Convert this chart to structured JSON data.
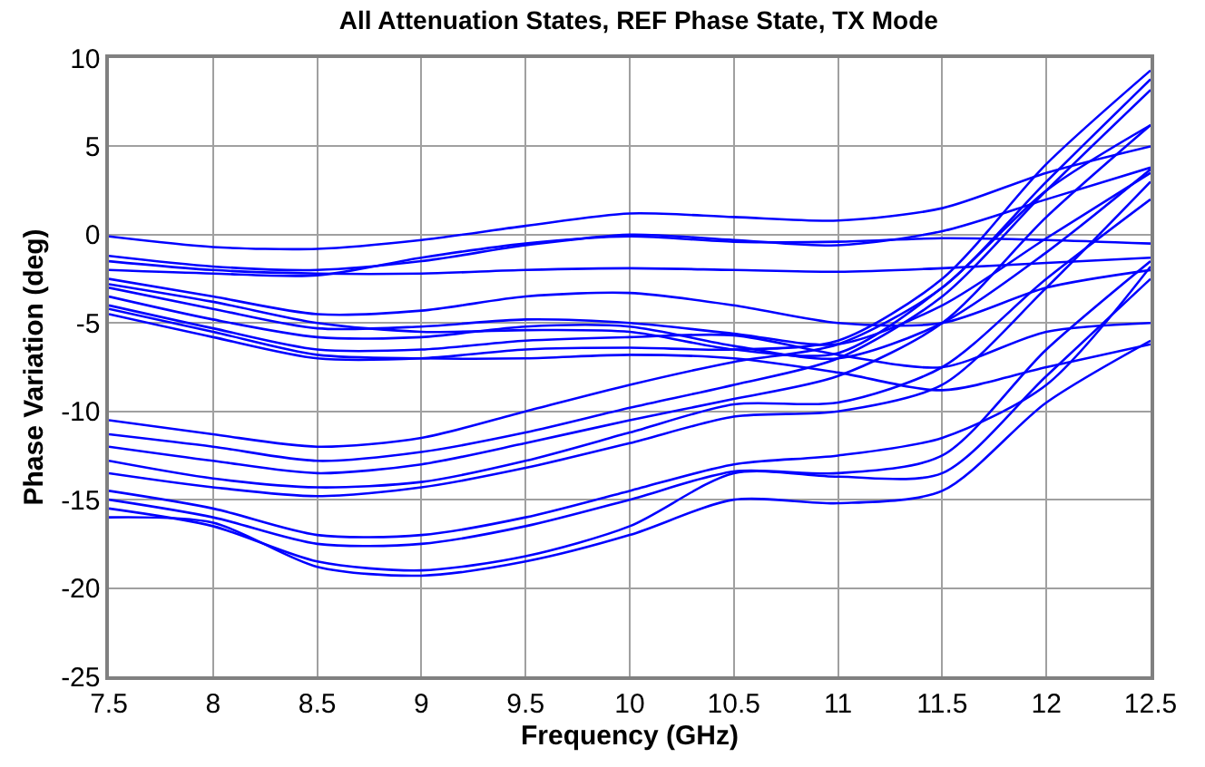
{
  "chart_data": {
    "type": "line",
    "title": "All Attenuation States, REF Phase State, TX Mode",
    "xlabel": "Frequency (GHz)",
    "ylabel": "Phase Variation (deg)",
    "x": [
      7.5,
      8,
      8.5,
      9,
      9.5,
      10,
      10.5,
      11,
      11.5,
      12,
      12.5
    ],
    "xlim": [
      7.5,
      12.5
    ],
    "xticks": [
      7.5,
      8,
      8.5,
      9,
      9.5,
      10,
      10.5,
      11,
      11.5,
      12,
      12.5
    ],
    "ylim": [
      -25,
      10
    ],
    "yticks": [
      -25,
      -20,
      -15,
      -10,
      -5,
      0,
      5,
      10
    ],
    "grid": true,
    "marker": "none",
    "line_style": "solid",
    "series": [
      {
        "color": "#0000ff",
        "values": [
          -0.1,
          -0.7,
          -0.8,
          -0.3,
          0.5,
          1.2,
          1.0,
          0.8,
          1.5,
          3.5,
          5.0
        ]
      },
      {
        "color": "#0000ff",
        "values": [
          -1.2,
          -1.8,
          -2.0,
          -1.5,
          -0.6,
          0.0,
          -0.3,
          -0.6,
          0.2,
          2.0,
          3.8
        ]
      },
      {
        "color": "#0000ff",
        "values": [
          -1.5,
          -2.0,
          -2.2,
          -2.2,
          -2.0,
          -1.9,
          -2.0,
          -2.1,
          -1.9,
          -1.6,
          -1.3
        ]
      },
      {
        "color": "#0000ff",
        "values": [
          -2.0,
          -2.2,
          -2.3,
          -1.3,
          -0.5,
          -0.1,
          -0.4,
          -0.4,
          -0.2,
          -0.3,
          -0.5
        ]
      },
      {
        "color": "#0000ff",
        "values": [
          -2.5,
          -3.5,
          -4.5,
          -4.3,
          -3.5,
          -3.3,
          -4.0,
          -5.0,
          -5.0,
          -3.0,
          -2.0
        ]
      },
      {
        "color": "#0000ff",
        "values": [
          -3.0,
          -4.2,
          -5.3,
          -5.2,
          -4.8,
          -5.0,
          -5.6,
          -6.2,
          -4.0,
          -0.2,
          3.5
        ]
      },
      {
        "color": "#0000ff",
        "values": [
          -3.5,
          -4.8,
          -5.8,
          -5.8,
          -5.2,
          -5.2,
          -6.3,
          -7.0,
          -5.0,
          -1.0,
          3.7
        ]
      },
      {
        "color": "#0000ff",
        "values": [
          -4.2,
          -5.5,
          -6.8,
          -7.0,
          -7.0,
          -6.8,
          -7.0,
          -7.8,
          -8.8,
          -7.5,
          -6.2
        ]
      },
      {
        "color": "#0000ff",
        "values": [
          -4.0,
          -5.3,
          -6.5,
          -6.5,
          -6.0,
          -5.8,
          -5.7,
          -6.8,
          -7.5,
          -5.5,
          -5.0
        ]
      },
      {
        "color": "#0000ff",
        "values": [
          -2.8,
          -3.8,
          -5.0,
          -5.5,
          -5.4,
          -5.5,
          -6.5,
          -6.7,
          -3.0,
          2.5,
          6.2
        ]
      },
      {
        "color": "#0000ff",
        "values": [
          -4.5,
          -5.8,
          -7.0,
          -7.0,
          -6.5,
          -6.4,
          -6.5,
          -6.0,
          -2.5,
          4.0,
          9.3
        ]
      },
      {
        "color": "#0000ff",
        "values": [
          -10.5,
          -11.3,
          -12.0,
          -11.5,
          -10.0,
          -8.5,
          -7.2,
          -6.2,
          -3.0,
          3.0,
          8.8
        ]
      },
      {
        "color": "#0000ff",
        "values": [
          -11.3,
          -12.0,
          -12.8,
          -12.3,
          -11.2,
          -9.8,
          -8.5,
          -7.0,
          -3.5,
          2.5,
          8.2
        ]
      },
      {
        "color": "#0000ff",
        "values": [
          -12.0,
          -12.8,
          -13.5,
          -13.0,
          -11.8,
          -10.5,
          -9.3,
          -8.0,
          -5.0,
          1.0,
          6.2
        ]
      },
      {
        "color": "#0000ff",
        "values": [
          -12.8,
          -13.8,
          -14.3,
          -14.0,
          -12.8,
          -11.2,
          -9.6,
          -9.5,
          -7.5,
          -2.5,
          2.0
        ]
      },
      {
        "color": "#0000ff",
        "values": [
          -13.5,
          -14.3,
          -14.8,
          -14.3,
          -13.2,
          -11.8,
          -10.3,
          -10.0,
          -8.5,
          -3.0,
          3.0
        ]
      },
      {
        "color": "#0000ff",
        "values": [
          -14.5,
          -15.5,
          -17.0,
          -17.0,
          -16.0,
          -14.5,
          -13.0,
          -12.5,
          -11.5,
          -8.5,
          -1.8
        ]
      },
      {
        "color": "#0000ff",
        "values": [
          -15.0,
          -16.0,
          -17.5,
          -17.5,
          -16.5,
          -15.0,
          -13.4,
          -13.5,
          -12.5,
          -6.5,
          -1.5
        ]
      },
      {
        "color": "#0000ff",
        "values": [
          -15.5,
          -16.5,
          -18.5,
          -19.0,
          -18.2,
          -16.5,
          -13.5,
          -13.7,
          -13.5,
          -8.0,
          -2.5
        ]
      },
      {
        "color": "#0000ff",
        "values": [
          -16.0,
          -16.3,
          -18.8,
          -19.3,
          -18.5,
          -17.0,
          -15.0,
          -15.2,
          -14.5,
          -9.5,
          -6.0
        ]
      }
    ]
  }
}
